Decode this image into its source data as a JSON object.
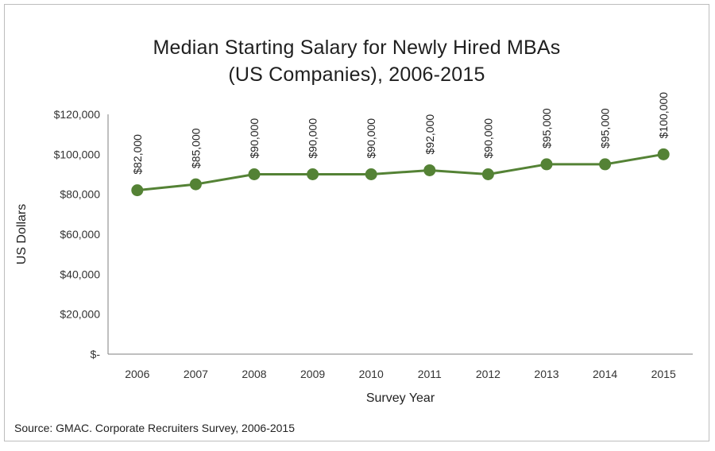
{
  "chart_data": {
    "type": "line",
    "title_line1": "Median Starting Salary for Newly Hired MBAs",
    "title_line2": "(US Companies), 2006-2015",
    "xlabel": "Survey Year",
    "ylabel": "US Dollars",
    "x": [
      "2006",
      "2007",
      "2008",
      "2009",
      "2010",
      "2011",
      "2012",
      "2013",
      "2014",
      "2015"
    ],
    "series": [
      {
        "values": [
          82000,
          85000,
          90000,
          90000,
          90000,
          92000,
          90000,
          95000,
          95000,
          100000
        ],
        "color": "#548235"
      }
    ],
    "data_labels": [
      "$82,000",
      "$85,000",
      "$90,000",
      "$90,000",
      "$90,000",
      "$92,000",
      "$90,000",
      "$95,000",
      "$95,000",
      "$100,000"
    ],
    "ylim": [
      0,
      120000
    ],
    "y_ticks": [
      0,
      20000,
      40000,
      60000,
      80000,
      100000,
      120000
    ],
    "y_tick_labels": [
      "$-",
      "$20,000",
      "$40,000",
      "$60,000",
      "$80,000",
      "$100,000",
      "$120,000"
    ],
    "grid": false,
    "legend": "none"
  },
  "source_note": "Source: GMAC. Corporate Recruiters Survey, 2006-2015"
}
